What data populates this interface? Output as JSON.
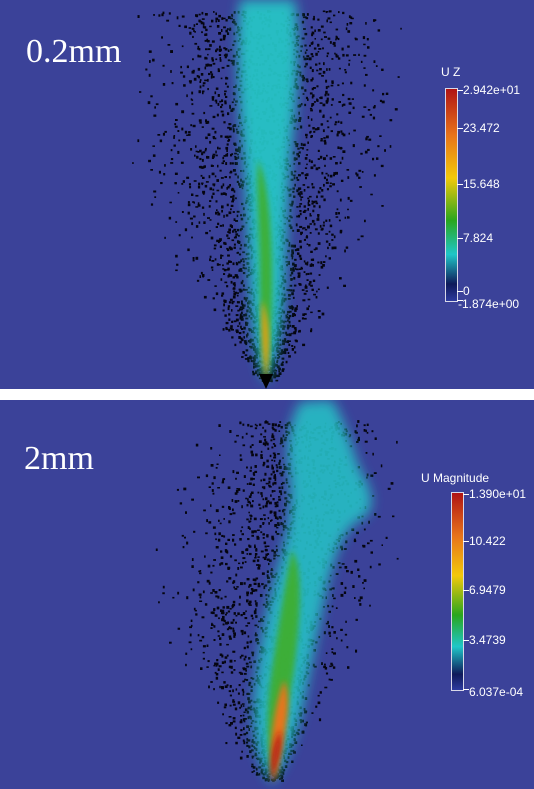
{
  "panels": [
    {
      "label": "0.2mm",
      "colorbar": {
        "title": "U Z",
        "labels": [
          "2.942e+01",
          "23.472",
          "15.648",
          "7.824",
          "0",
          "-1.874e+00"
        ]
      }
    },
    {
      "label": "2mm",
      "colorbar": {
        "title": "U Magnitude",
        "labels": [
          "1.390e+01",
          "10.422",
          "6.9479",
          "3.4739",
          "6.037e-04"
        ]
      }
    }
  ],
  "colors": {
    "background": "#3b4299",
    "colormap": [
      "#2d3a9e",
      "#0f1a5a",
      "#1fc6c8",
      "#2aa61e",
      "#f2c90a",
      "#e8741a",
      "#b01414"
    ]
  }
}
